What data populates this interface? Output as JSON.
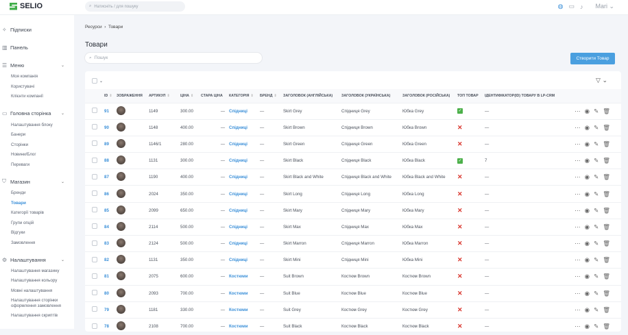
{
  "app": {
    "brand": "SELIO",
    "search_placeholder": "Натисніть / для пошуку",
    "user": "Mari"
  },
  "sidebar": {
    "sections": [
      {
        "label": "Підписки",
        "icon": "sparkles-icon",
        "items": []
      },
      {
        "label": "Панель",
        "icon": "bar-chart-icon",
        "items": []
      },
      {
        "label": "Меню",
        "icon": "list-icon",
        "chevron": true,
        "items": [
          "Моя компанія",
          "Користувачі",
          "Клієнти компанії"
        ]
      },
      {
        "label": "Головна сторінка",
        "icon": "box-icon",
        "chevron": true,
        "items": [
          "Налаштування блоку",
          "Банери",
          "Сторінки",
          "Новини/Блог",
          "Переваги"
        ]
      },
      {
        "label": "Магазин",
        "icon": "shopping-bag-icon",
        "chevron": true,
        "items": [
          "Бренди",
          "Товари",
          "Категорії товарів",
          "Групи опцій",
          "Відгуки",
          "Замовлення"
        ]
      },
      {
        "label": "Налаштування",
        "icon": "gear-icon",
        "chevron": true,
        "items": [
          "Налаштування магазину",
          "Налаштування кольору",
          "Мовні налаштування",
          "Налаштування сторінки оформлення замовлення",
          "Налаштування скриптів"
        ]
      }
    ],
    "active": "Товари"
  },
  "breadcrumb": [
    "Ресурси",
    "Товари"
  ],
  "page": {
    "title": "Товари",
    "search_placeholder": "Пошук",
    "create_label": "Створити Товар"
  },
  "table": {
    "columns": [
      "ID",
      "ЗОБРАЖЕННЯ",
      "АРТИКУЛ",
      "ЦІНА",
      "СТАРА ЦІНА",
      "КАТЕГОРІЯ",
      "БРЕНД",
      "ЗАГОЛОВОК (АНГЛІЙСЬКА)",
      "ЗАГОЛОВОК (УКРАЇНСЬКА)",
      "ЗАГОЛОВОК (РОСІЙСЬКА)",
      "ТОП ТОВАР",
      "ІДЕНТИФІКАТОР(ID) ТОВАРУ В LP-CRM"
    ],
    "rows": [
      {
        "id": "91",
        "sku": "1149",
        "price": "300.00",
        "old": "—",
        "cat": "Спідниці",
        "brand": "—",
        "en": "Skirt Grey",
        "uk": "Спідниця Grey",
        "ru": "Юбка Grey",
        "top": true,
        "crm": "—"
      },
      {
        "id": "90",
        "sku": "1148",
        "price": "400.00",
        "old": "—",
        "cat": "Спідниці",
        "brand": "—",
        "en": "Skirt Brown",
        "uk": "Спідниця Brown",
        "ru": "Юбка Brown",
        "top": false,
        "crm": "—"
      },
      {
        "id": "89",
        "sku": "1146/1",
        "price": "280.00",
        "old": "—",
        "cat": "Спідниці",
        "brand": "—",
        "en": "Skirt Green",
        "uk": "Спідниця Green",
        "ru": "Юбка Green",
        "top": false,
        "crm": "—"
      },
      {
        "id": "88",
        "sku": "1131",
        "price": "300.00",
        "old": "—",
        "cat": "Спідниці",
        "brand": "—",
        "en": "Skirt Black",
        "uk": "Спідниця Black",
        "ru": "Юбка Black",
        "top": true,
        "crm": "7"
      },
      {
        "id": "87",
        "sku": "1190",
        "price": "400.00",
        "old": "—",
        "cat": "Спідниці",
        "brand": "—",
        "en": "Skirt Black and White",
        "uk": "Спідниця Black and White",
        "ru": "Юбка Black and White",
        "top": false,
        "crm": "—"
      },
      {
        "id": "86",
        "sku": "2024",
        "price": "350.00",
        "old": "—",
        "cat": "Спідниці",
        "brand": "—",
        "en": "Skirt Long",
        "uk": "Спідниця Long",
        "ru": "Юбка Long",
        "top": false,
        "crm": "—"
      },
      {
        "id": "85",
        "sku": "2099",
        "price": "650.00",
        "old": "—",
        "cat": "Спідниці",
        "brand": "—",
        "en": "Skirt Mary",
        "uk": "Спідниця Mary",
        "ru": "Юбка Mary",
        "top": false,
        "crm": "—"
      },
      {
        "id": "84",
        "sku": "2114",
        "price": "500.00",
        "old": "—",
        "cat": "Спідниці",
        "brand": "—",
        "en": "Skirt Max",
        "uk": "Спідниця Max",
        "ru": "Юбка Max",
        "top": false,
        "crm": "—"
      },
      {
        "id": "83",
        "sku": "2124",
        "price": "500.00",
        "old": "—",
        "cat": "Спідниці",
        "brand": "—",
        "en": "Skirt Marron",
        "uk": "Спідниця Marron",
        "ru": "Юбка Marron",
        "top": false,
        "crm": "—"
      },
      {
        "id": "82",
        "sku": "1131",
        "price": "350.00",
        "old": "—",
        "cat": "Спідниці",
        "brand": "—",
        "en": "Skirt Mini",
        "uk": "Спідниця Mini",
        "ru": "Юбка Mini",
        "top": false,
        "crm": "—"
      },
      {
        "id": "81",
        "sku": "2075",
        "price": "600.00",
        "old": "—",
        "cat": "Костюми",
        "brand": "—",
        "en": "Suit Brown",
        "uk": "Костюм Brown",
        "ru": "Костюм Brown",
        "top": false,
        "crm": "—"
      },
      {
        "id": "80",
        "sku": "2093",
        "price": "700.00",
        "old": "—",
        "cat": "Костюми",
        "brand": "—",
        "en": "Suit Blue",
        "uk": "Костюм Blue",
        "ru": "Костюм Blue",
        "top": false,
        "crm": "—"
      },
      {
        "id": "79",
        "sku": "1181",
        "price": "330.00",
        "old": "—",
        "cat": "Костюми",
        "brand": "—",
        "en": "Suit Grey",
        "uk": "Костюм Grey",
        "ru": "Костюм Grey",
        "top": false,
        "crm": "—"
      },
      {
        "id": "78",
        "sku": "2108",
        "price": "700.00",
        "old": "—",
        "cat": "Костюми",
        "brand": "—",
        "en": "Suit Black",
        "uk": "Костюм Black",
        "ru": "Костюм Black",
        "top": false,
        "crm": "—"
      }
    ]
  },
  "colors": {
    "accent": "#4a9fdf",
    "link": "#3a8fd8",
    "ok": "#4cb04a",
    "no": "#d9352c"
  }
}
